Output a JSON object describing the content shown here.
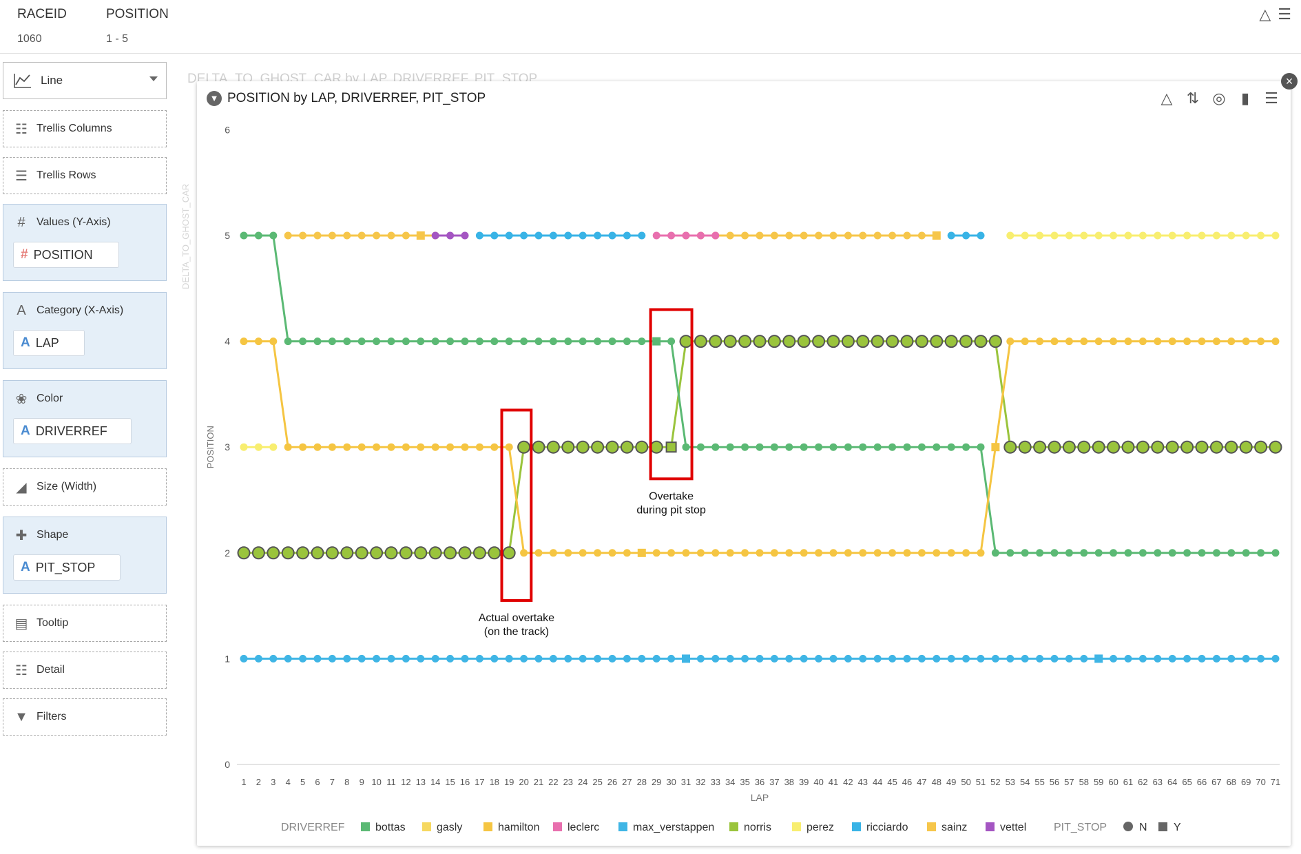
{
  "filters": [
    {
      "name": "RACEID",
      "value": "1060"
    },
    {
      "name": "POSITION",
      "value": "1 - 5"
    }
  ],
  "left_panel": {
    "chart_type": "Line",
    "wells": {
      "trellis_columns": "Trellis Columns",
      "trellis_rows": "Trellis Rows",
      "values": "Values (Y-Axis)",
      "values_item": "POSITION",
      "category": "Category (X-Axis)",
      "category_item": "LAP",
      "color": "Color",
      "color_item": "DRIVERREF",
      "size": "Size (Width)",
      "shape": "Shape",
      "shape_item": "PIT_STOP",
      "tooltip": "Tooltip",
      "detail": "Detail",
      "filters": "Filters"
    }
  },
  "background": {
    "ghost_title": "DELTA_TO_GHOST_CAR by LAP, DRIVERREF, PIT_STOP",
    "ghost_yaxis": "DELTA_TO_GHOST_CAR"
  },
  "colors": {
    "bottas": "#5bb974",
    "gasly": "#f6d860",
    "hamilton": "#f5c542",
    "leclerc": "#e86fae",
    "max_verstappen": "#3fb5e5",
    "norris": "#9ac43c",
    "perez": "#f8ee70",
    "ricciardo": "#38b3e6",
    "sainz": "#f6c64a",
    "vettel": "#a455c2",
    "annotation_box": "#e00000"
  },
  "chart_data": {
    "type": "line",
    "title": "POSITION by LAP, DRIVERREF, PIT_STOP",
    "xlabel": "LAP",
    "ylabel": "POSITION",
    "x": [
      1,
      2,
      3,
      4,
      5,
      6,
      7,
      8,
      9,
      10,
      11,
      12,
      13,
      14,
      15,
      16,
      17,
      18,
      19,
      20,
      21,
      22,
      23,
      24,
      25,
      26,
      27,
      28,
      29,
      30,
      31,
      32,
      33,
      34,
      35,
      36,
      37,
      38,
      39,
      40,
      41,
      42,
      43,
      44,
      45,
      46,
      47,
      48,
      49,
      50,
      51,
      52,
      53,
      54,
      55,
      56,
      57,
      58,
      59,
      60,
      61,
      62,
      63,
      64,
      65,
      66,
      67,
      68,
      69,
      70,
      71
    ],
    "ylim": [
      0,
      6
    ],
    "yticks": [
      0,
      1,
      2,
      3,
      4,
      5,
      6
    ],
    "legend_position": "bottom",
    "legend": {
      "color_title": "DRIVERREF",
      "color_entries": [
        "bottas",
        "gasly",
        "hamilton",
        "leclerc",
        "max_verstappen",
        "norris",
        "perez",
        "ricciardo",
        "sainz",
        "vettel"
      ],
      "shape_title": "PIT_STOP",
      "shape_entries": [
        "N",
        "Y"
      ]
    },
    "series": [
      {
        "name": "max_verstappen",
        "color": "#3fb5e5",
        "segments": [
          {
            "start": 1,
            "values": [
              1,
              1,
              1,
              1,
              1,
              1,
              1,
              1,
              1,
              1,
              1,
              1,
              1,
              1,
              1,
              1,
              1,
              1,
              1,
              1,
              1,
              1,
              1,
              1,
              1,
              1,
              1,
              1,
              1,
              1,
              1,
              1,
              1,
              1,
              1,
              1,
              1,
              1,
              1,
              1,
              1,
              1,
              1,
              1,
              1,
              1,
              1,
              1,
              1,
              1,
              1,
              1,
              1,
              1,
              1,
              1,
              1,
              1,
              1,
              1,
              1,
              1,
              1,
              1,
              1,
              1,
              1,
              1,
              1,
              1,
              1
            ]
          }
        ],
        "pit": [
          31,
          59
        ]
      },
      {
        "name": "norris",
        "color": "#9ac43c",
        "ring": true,
        "segments": [
          {
            "start": 1,
            "values": [
              2,
              2,
              2,
              2,
              2,
              2,
              2,
              2,
              2,
              2,
              2,
              2,
              2,
              2,
              2,
              2,
              2,
              2,
              2,
              3,
              3,
              3,
              3,
              3,
              3,
              3,
              3,
              3,
              3,
              3,
              4,
              4,
              4,
              4,
              4,
              4,
              4,
              4,
              4,
              4,
              4,
              4,
              4,
              4,
              4,
              4,
              4,
              4,
              4,
              4,
              4,
              4,
              3,
              3,
              3,
              3,
              3,
              3,
              3,
              3,
              3,
              3,
              3,
              3,
              3,
              3,
              3,
              3,
              3,
              3,
              3
            ]
          }
        ],
        "pit": [
          30
        ]
      },
      {
        "name": "bottas",
        "color": "#5bb974",
        "segments": [
          {
            "start": 1,
            "values": [
              5,
              5,
              5,
              4,
              4,
              4,
              4,
              4,
              4,
              4,
              4,
              4,
              4,
              4,
              4,
              4,
              4,
              4,
              4,
              4,
              4,
              4,
              4,
              4,
              4,
              4,
              4,
              4,
              4,
              4,
              3,
              3,
              3,
              3,
              3,
              3,
              3,
              3,
              3,
              3,
              3,
              3,
              3,
              3,
              3,
              3,
              3,
              3,
              3,
              3,
              3,
              2,
              2,
              2,
              2,
              2,
              2,
              2,
              2,
              2,
              2,
              2,
              2,
              2,
              2,
              2,
              2,
              2,
              2,
              2,
              2
            ]
          }
        ],
        "pit": [
          29
        ]
      },
      {
        "name": "hamilton",
        "color": "#f5c542",
        "segments": [
          {
            "start": 1,
            "values": [
              4,
              4,
              4,
              3,
              3,
              3,
              3,
              3,
              3,
              3,
              3,
              3,
              3,
              3,
              3,
              3,
              3,
              3,
              3,
              2,
              2,
              2,
              2,
              2,
              2,
              2,
              2,
              2,
              2,
              2,
              2,
              2,
              2,
              2,
              2,
              2,
              2,
              2,
              2,
              2,
              2,
              2,
              2,
              2,
              2,
              2,
              2,
              2,
              2,
              2,
              2,
              3,
              4,
              4,
              4,
              4,
              4,
              4,
              4,
              4,
              4,
              4,
              4,
              4,
              4,
              4,
              4,
              4,
              4,
              4,
              4
            ]
          }
        ],
        "pit": [
          28,
          52
        ]
      },
      {
        "name": "perez",
        "color": "#f8ee70",
        "segments": [
          {
            "start": 1,
            "values": [
              3,
              3,
              3
            ]
          },
          {
            "start": 53,
            "values": [
              5,
              5,
              5,
              5,
              5,
              5,
              5,
              5,
              5,
              5,
              5,
              5,
              5,
              5,
              5,
              5,
              5,
              5,
              5
            ]
          }
        ],
        "pit": []
      },
      {
        "name": "sainz",
        "color": "#f6c64a",
        "segments": [
          {
            "start": 4,
            "values": [
              5,
              5,
              5,
              5,
              5,
              5,
              5,
              5,
              5,
              5,
              5
            ]
          },
          {
            "start": 31,
            "values": [
              5,
              5,
              5,
              5,
              5,
              5,
              5,
              5,
              5,
              5,
              5,
              5,
              5,
              5,
              5,
              5,
              5,
              5
            ]
          }
        ],
        "pit": [
          13,
          48
        ]
      },
      {
        "name": "vettel",
        "color": "#a455c2",
        "segments": [
          {
            "start": 14,
            "values": [
              5,
              5,
              5
            ]
          }
        ],
        "pit": []
      },
      {
        "name": "ricciardo",
        "color": "#38b3e6",
        "segments": [
          {
            "start": 17,
            "values": [
              5,
              5,
              5,
              5,
              5,
              5,
              5,
              5,
              5,
              5,
              5,
              5
            ]
          },
          {
            "start": 49,
            "values": [
              5,
              5,
              5
            ]
          }
        ],
        "pit": []
      },
      {
        "name": "leclerc",
        "color": "#e86fae",
        "segments": [
          {
            "start": 29,
            "values": [
              5,
              5,
              5,
              5,
              5
            ]
          }
        ],
        "pit": []
      }
    ],
    "annotations": [
      {
        "text_lines": [
          "Actual overtake",
          "(on the track)"
        ],
        "x_range": [
          18.5,
          20.5
        ],
        "y_range": [
          1.55,
          3.35
        ]
      },
      {
        "text_lines": [
          "Overtake",
          "during pit stop"
        ],
        "x_range": [
          28.6,
          31.4
        ],
        "y_range": [
          2.7,
          4.3
        ]
      }
    ]
  }
}
